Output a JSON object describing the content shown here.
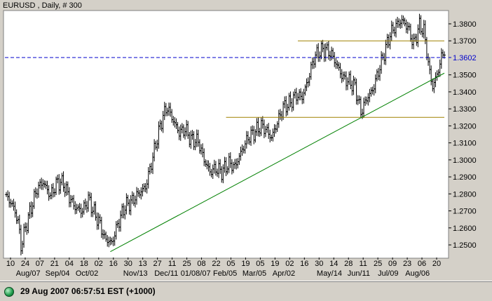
{
  "window": {
    "title": "EURUSD , Daily, # 300"
  },
  "status_bar": {
    "timestamp": "29 Aug 2007 06:57:51 EST (+1000)",
    "status_color": "#1d9a4a"
  },
  "colors": {
    "plot_bg": "#ffffff",
    "price_bars": "#000000",
    "last_price_line": "#0000cc",
    "trend_line": "#008000",
    "horizontal_levels": "#a08000"
  },
  "chart_data": {
    "type": "ohlc",
    "title": "EURUSD , Daily, # 300",
    "ylim": [
      1.243,
      1.387
    ],
    "y_ticks": [
      "1.2500",
      "1.2600",
      "1.2700",
      "1.2800",
      "1.2900",
      "1.3000",
      "1.3100",
      "1.3200",
      "1.3300",
      "1.3400",
      "1.3500",
      "1.3700",
      "1.3800"
    ],
    "last_price": "1.3602",
    "day_ticks": [
      "10",
      "24",
      "07",
      "21",
      "04",
      "18",
      "02",
      "16",
      "30",
      "13",
      "27",
      "11",
      "25",
      "08",
      "22",
      "05",
      "19",
      "05",
      "19",
      "02",
      "16",
      "30",
      "14",
      "28",
      "11",
      "25",
      "09",
      "23",
      "06",
      "20"
    ],
    "month_ticks": [
      "Aug/07",
      "Sep/04",
      "Oct/02",
      "Nov/13",
      "Dec/11",
      "01/08/07",
      "Feb/05",
      "Mar/05",
      "Apr/02",
      "May/14",
      "Jun/11",
      "Jul/09",
      "Aug/06"
    ],
    "bar_count": 300,
    "anchors": [
      [
        0,
        1.278
      ],
      [
        4,
        1.274
      ],
      [
        8,
        1.264
      ],
      [
        10,
        1.249
      ],
      [
        13,
        1.26
      ],
      [
        17,
        1.272
      ],
      [
        21,
        1.283
      ],
      [
        25,
        1.287
      ],
      [
        30,
        1.279
      ],
      [
        35,
        1.287
      ],
      [
        39,
        1.286
      ],
      [
        43,
        1.278
      ],
      [
        47,
        1.272
      ],
      [
        52,
        1.27
      ],
      [
        56,
        1.277
      ],
      [
        60,
        1.269
      ],
      [
        64,
        1.262
      ],
      [
        67,
        1.254
      ],
      [
        72,
        1.251
      ],
      [
        76,
        1.262
      ],
      [
        81,
        1.273
      ],
      [
        85,
        1.275
      ],
      [
        90,
        1.28
      ],
      [
        95,
        1.284
      ],
      [
        99,
        1.298
      ],
      [
        103,
        1.313
      ],
      [
        107,
        1.326
      ],
      [
        110,
        1.331
      ],
      [
        114,
        1.323
      ],
      [
        118,
        1.316
      ],
      [
        122,
        1.318
      ],
      [
        126,
        1.312
      ],
      [
        131,
        1.311
      ],
      [
        135,
        1.3
      ],
      [
        139,
        1.293
      ],
      [
        143,
        1.295
      ],
      [
        147,
        1.293
      ],
      [
        152,
        1.298
      ],
      [
        156,
        1.296
      ],
      [
        161,
        1.306
      ],
      [
        165,
        1.313
      ],
      [
        169,
        1.316
      ],
      [
        174,
        1.32
      ],
      [
        177,
        1.318
      ],
      [
        181,
        1.313
      ],
      [
        185,
        1.322
      ],
      [
        189,
        1.331
      ],
      [
        193,
        1.333
      ],
      [
        198,
        1.338
      ],
      [
        202,
        1.337
      ],
      [
        206,
        1.347
      ],
      [
        210,
        1.36
      ],
      [
        214,
        1.364
      ],
      [
        218,
        1.365
      ],
      [
        222,
        1.362
      ],
      [
        226,
        1.355
      ],
      [
        230,
        1.348
      ],
      [
        234,
        1.346
      ],
      [
        238,
        1.343
      ],
      [
        242,
        1.328
      ],
      [
        246,
        1.336
      ],
      [
        250,
        1.341
      ],
      [
        254,
        1.352
      ],
      [
        258,
        1.363
      ],
      [
        262,
        1.374
      ],
      [
        266,
        1.379
      ],
      [
        270,
        1.382
      ],
      [
        274,
        1.378
      ],
      [
        278,
        1.368
      ],
      [
        282,
        1.379
      ],
      [
        285,
        1.376
      ],
      [
        289,
        1.351
      ],
      [
        291,
        1.343
      ],
      [
        294,
        1.35
      ],
      [
        297,
        1.36
      ],
      [
        299,
        1.365
      ]
    ],
    "overlays": {
      "trend_line": {
        "start": [
          71,
          1.246
        ],
        "end": [
          299,
          1.351
        ]
      },
      "resistance_level": {
        "price": 1.37,
        "from_bar": 199,
        "to_bar": 299
      },
      "support_level": {
        "price": 1.325,
        "from_bar": 150,
        "to_bar": 299
      },
      "last_price_line": {
        "price": 1.3602
      }
    }
  }
}
